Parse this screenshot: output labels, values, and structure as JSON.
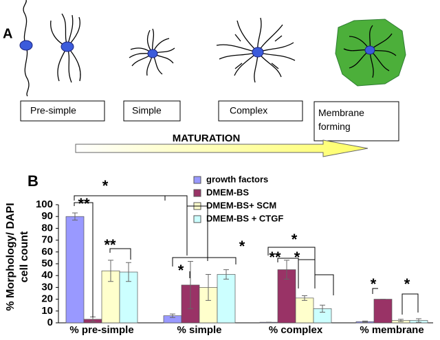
{
  "panel_a": {
    "label": "A",
    "stages": [
      "Pre-simple",
      "Simple",
      "Complex",
      "Membrane forming"
    ],
    "arrow_label": "MATURATION"
  },
  "chart_data": {
    "type": "bar",
    "panel_label": "B",
    "ylabel": [
      "% Morphology/ DAPI",
      "cell count"
    ],
    "categories": [
      "% pre-simple",
      "% simple",
      "% complex",
      "% membrane"
    ],
    "series": [
      {
        "name": "growth factors",
        "color": "#9999ff",
        "values": [
          90,
          6,
          0.5,
          1
        ],
        "errors": [
          3,
          1.5,
          0,
          0.5
        ]
      },
      {
        "name": "DMEM-BS",
        "color": "#993366",
        "values": [
          3,
          32,
          45,
          20
        ],
        "errors": [
          2,
          20,
          8,
          0
        ]
      },
      {
        "name": "DMEM-BS+ SCM",
        "color": "#ffffcc",
        "values": [
          44,
          30,
          21,
          2
        ],
        "errors": [
          9,
          11,
          2,
          1
        ]
      },
      {
        "name": "DMEM-BS + CTGF",
        "color": "#ccffff",
        "values": [
          43,
          41,
          12,
          2
        ],
        "errors": [
          8,
          4,
          3,
          1.5
        ]
      }
    ],
    "ylim": [
      0,
      100
    ],
    "yticks": [
      0,
      10,
      20,
      30,
      40,
      50,
      60,
      70,
      80,
      90,
      100
    ],
    "annotations": [
      "**",
      "*",
      "**",
      "*",
      "*",
      "*",
      "**",
      "*",
      "*",
      "*"
    ]
  }
}
